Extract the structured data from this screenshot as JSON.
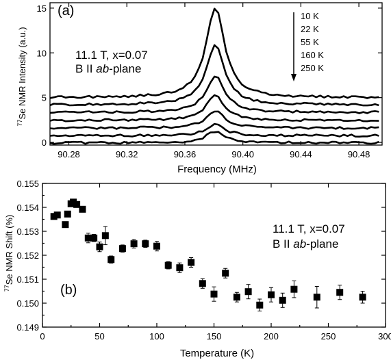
{
  "chart_data": [
    {
      "type": "line",
      "panel_label": "(a)",
      "xlabel": "Frequency (MHz)",
      "ylabel": "77Se NMR Intensity (a.u.)",
      "ylabel_parts": {
        "sup": "77",
        "text": "Se NMR Intensity (a.u.)"
      },
      "xlim": [
        90.267,
        90.496
      ],
      "ylim": [
        -0.3,
        15.6
      ],
      "x_ticks": [
        {
          "v": 90.28,
          "label": "90.28"
        },
        {
          "v": 90.32,
          "label": "90.32"
        },
        {
          "v": 90.36,
          "label": "90.36"
        },
        {
          "v": 90.4,
          "label": "90.40"
        },
        {
          "v": 90.44,
          "label": "90.44"
        },
        {
          "v": 90.48,
          "label": "90.48"
        }
      ],
      "y_ticks": [
        {
          "v": 0,
          "label": "0"
        },
        {
          "v": 5,
          "label": "5"
        },
        {
          "v": 10,
          "label": "10"
        },
        {
          "v": 15,
          "label": "15"
        }
      ],
      "annotations": [
        "11.1 T, x=0.07",
        "B II ab-plane"
      ],
      "annotation_field": "11.1 T, x=0.07",
      "annotation_orientation": {
        "pre": "B II ",
        "em": "ab",
        "post": "-plane"
      },
      "legend": [
        "10 K",
        "22 K",
        "55 K",
        "160 K",
        "250 K"
      ],
      "peak_center": 90.381,
      "series": [
        {
          "name": "10 K",
          "baseline": 5.0,
          "peak": 15.0,
          "halfwidth": 0.0075
        },
        {
          "name": "22 K",
          "baseline": 4.2,
          "peak": 10.8,
          "halfwidth": 0.0075
        },
        {
          "name": "55 K",
          "baseline": 3.35,
          "peak": 7.4,
          "halfwidth": 0.0075
        },
        {
          "name": "160 K",
          "baseline": 2.45,
          "peak": 5.2,
          "halfwidth": 0.0075
        },
        {
          "name": "250 K",
          "baseline": 1.6,
          "peak": 3.5,
          "halfwidth": 0.0075
        },
        {
          "name": "",
          "baseline": 0.75,
          "peak": 2.0,
          "halfwidth": 0.0075
        },
        {
          "name": "",
          "baseline": -0.05,
          "peak": 1.2,
          "halfwidth": 0.0075
        }
      ]
    },
    {
      "type": "scatter",
      "panel_label": "(b)",
      "xlabel": "Temperature (K)",
      "ylabel": "77Se NMR Shift (%)",
      "ylabel_parts": {
        "sup": "77",
        "text": "Se NMR Shift (%)"
      },
      "xlim": [
        0,
        300
      ],
      "ylim": [
        0.149,
        0.155
      ],
      "x_ticks": [
        {
          "v": 0,
          "label": "0"
        },
        {
          "v": 50,
          "label": "50"
        },
        {
          "v": 100,
          "label": "100"
        },
        {
          "v": 150,
          "label": "150"
        },
        {
          "v": 200,
          "label": "200"
        },
        {
          "v": 250,
          "label": "250"
        },
        {
          "v": 300,
          "label": "300"
        }
      ],
      "y_ticks": [
        {
          "v": 0.149,
          "label": "0.149"
        },
        {
          "v": 0.15,
          "label": "0.150"
        },
        {
          "v": 0.151,
          "label": "0.151"
        },
        {
          "v": 0.152,
          "label": "0.152"
        },
        {
          "v": 0.153,
          "label": "0.153"
        },
        {
          "v": 0.154,
          "label": "0.154"
        },
        {
          "v": 0.155,
          "label": "0.155"
        }
      ],
      "annotations": [
        "11.1 T, x=0.07",
        "B II ab-plane"
      ],
      "annotation_field": "11.1 T, x=0.07",
      "annotation_orientation": {
        "pre": "B II ",
        "em": "ab",
        "post": "-plane"
      },
      "series": [
        {
          "points": [
            {
              "x": 10,
              "y": 0.15362,
              "err": 8e-05
            },
            {
              "x": 13,
              "y": 0.15368,
              "err": 8e-05
            },
            {
              "x": 20,
              "y": 0.15328,
              "err": 0.00012
            },
            {
              "x": 22,
              "y": 0.15372,
              "err": 0.0001
            },
            {
              "x": 25,
              "y": 0.15415,
              "err": 0.0001
            },
            {
              "x": 27,
              "y": 0.15422,
              "err": 0.0001
            },
            {
              "x": 30,
              "y": 0.15412,
              "err": 0.00012
            },
            {
              "x": 35,
              "y": 0.15392,
              "err": 0.00012
            },
            {
              "x": 40,
              "y": 0.15272,
              "err": 0.0002
            },
            {
              "x": 45,
              "y": 0.15272,
              "err": 0.00015
            },
            {
              "x": 50,
              "y": 0.15235,
              "err": 0.0002
            },
            {
              "x": 55,
              "y": 0.15282,
              "err": 0.00038
            },
            {
              "x": 60,
              "y": 0.15182,
              "err": 0.00015
            },
            {
              "x": 70,
              "y": 0.15228,
              "err": 0.00015
            },
            {
              "x": 80,
              "y": 0.15248,
              "err": 0.00018
            },
            {
              "x": 90,
              "y": 0.15248,
              "err": 0.00015
            },
            {
              "x": 100,
              "y": 0.15238,
              "err": 0.0002
            },
            {
              "x": 110,
              "y": 0.15158,
              "err": 0.00015
            },
            {
              "x": 120,
              "y": 0.15148,
              "err": 0.0002
            },
            {
              "x": 130,
              "y": 0.1517,
              "err": 0.0002
            },
            {
              "x": 140,
              "y": 0.15082,
              "err": 0.0002
            },
            {
              "x": 150,
              "y": 0.15038,
              "err": 0.0003
            },
            {
              "x": 160,
              "y": 0.15125,
              "err": 0.0002
            },
            {
              "x": 170,
              "y": 0.15025,
              "err": 0.0002
            },
            {
              "x": 180,
              "y": 0.15048,
              "err": 0.0003
            },
            {
              "x": 190,
              "y": 0.14992,
              "err": 0.00025
            },
            {
              "x": 200,
              "y": 0.15035,
              "err": 0.0003
            },
            {
              "x": 210,
              "y": 0.15012,
              "err": 0.0003
            },
            {
              "x": 220,
              "y": 0.15058,
              "err": 0.00035
            },
            {
              "x": 240,
              "y": 0.15025,
              "err": 0.00045
            },
            {
              "x": 260,
              "y": 0.15045,
              "err": 0.0003
            },
            {
              "x": 280,
              "y": 0.15025,
              "err": 0.00025
            }
          ]
        }
      ]
    }
  ]
}
